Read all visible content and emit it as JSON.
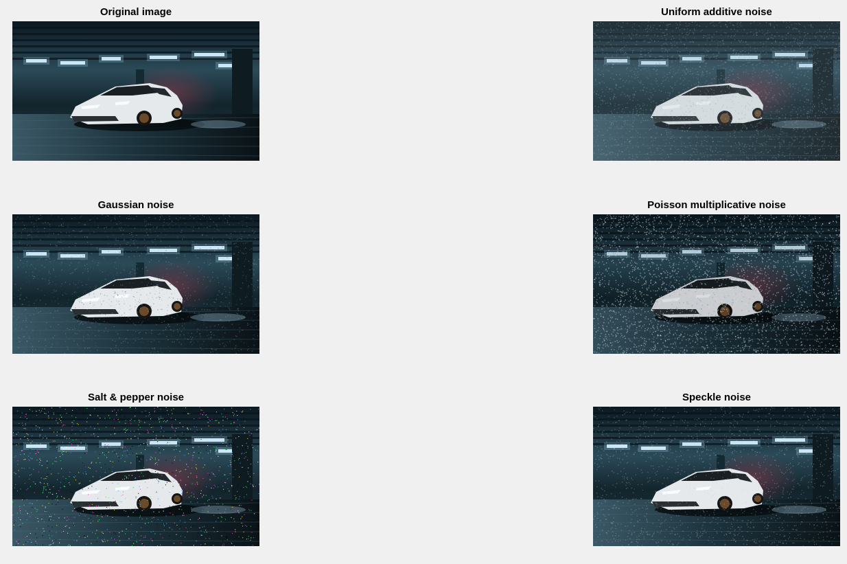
{
  "figure": {
    "panels": [
      {
        "id": "original",
        "title": "Original image",
        "noise": "none"
      },
      {
        "id": "uniform",
        "title": "Uniform additive noise",
        "noise": "uniform"
      },
      {
        "id": "gaussian",
        "title": "Gaussian noise",
        "noise": "gaussian"
      },
      {
        "id": "poisson",
        "title": "Poisson multiplicative noise",
        "noise": "poisson"
      },
      {
        "id": "saltpepper",
        "title": "Salt & pepper noise",
        "noise": "saltpepper"
      },
      {
        "id": "speckle",
        "title": "Speckle noise",
        "noise": "speckle"
      }
    ]
  },
  "colors": {
    "background": "#f0f0f0",
    "scene_dark": "#0d1a22",
    "scene_teal": "#2b4a58",
    "car_body": "#e6e9ec"
  }
}
